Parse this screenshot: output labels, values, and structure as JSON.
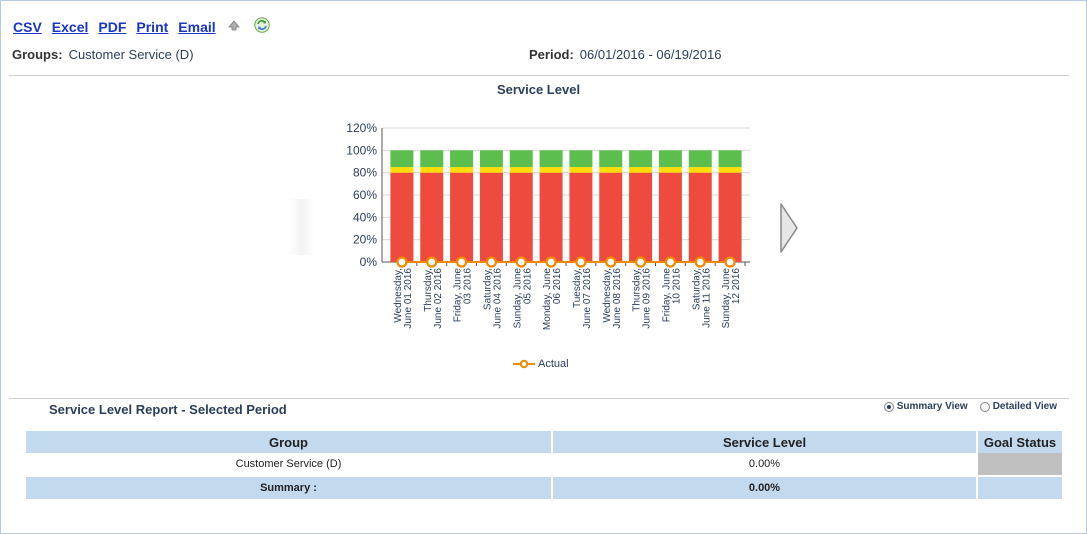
{
  "toolbar": {
    "csv": "CSV",
    "excel": "Excel",
    "pdf": "PDF",
    "print": "Print",
    "email": "Email"
  },
  "filters": {
    "groups_label": "Groups:",
    "groups_value": "Customer Service (D)",
    "period_label": "Period:",
    "period_value": "06/01/2016 - 06/19/2016"
  },
  "colors": {
    "red": "#ee4b3e",
    "yellow": "#ffdd00",
    "green": "#5cbf4d",
    "actual": "#f08a00"
  },
  "chart_data": {
    "type": "bar",
    "title": "Service Level",
    "stacked": true,
    "ylim": [
      0,
      120
    ],
    "yticks": [
      "0%",
      "20%",
      "40%",
      "60%",
      "80%",
      "100%",
      "120%"
    ],
    "categories": [
      [
        "Wednesday,",
        "June 01 2016"
      ],
      [
        "Thursday,",
        "June 02 2016"
      ],
      [
        "Friday, June",
        "03 2016"
      ],
      [
        "Saturday,",
        "June 04 2016"
      ],
      [
        "Sunday, June",
        "05 2016"
      ],
      [
        "Monday, June",
        "06 2016"
      ],
      [
        "Tuesday,",
        "June 07 2016"
      ],
      [
        "Wednesday,",
        "June 08 2016"
      ],
      [
        "Thursday,",
        "June 09 2016"
      ],
      [
        "Friday, June",
        "10 2016"
      ],
      [
        "Saturday,",
        "June 11 2016"
      ],
      [
        "Sunday, June",
        "12 2016"
      ]
    ],
    "series": [
      {
        "color": "#ee4b3e",
        "values": [
          80,
          80,
          80,
          80,
          80,
          80,
          80,
          80,
          80,
          80,
          80,
          80
        ]
      },
      {
        "color": "#ffdd00",
        "values": [
          5,
          5,
          5,
          5,
          5,
          5,
          5,
          5,
          5,
          5,
          5,
          5
        ]
      },
      {
        "color": "#5cbf4d",
        "values": [
          15,
          15,
          15,
          15,
          15,
          15,
          15,
          15,
          15,
          15,
          15,
          15
        ]
      },
      {
        "name": "Actual",
        "type": "line",
        "color": "#f08a00",
        "values": [
          0,
          0,
          0,
          0,
          0,
          0,
          0,
          0,
          0,
          0,
          0,
          0
        ]
      }
    ],
    "legend": [
      "Actual"
    ],
    "legend_position": "bottom",
    "grid": true
  },
  "report": {
    "title": "Service Level Report - Selected Period",
    "summary_view": "Summary View",
    "detailed_view": "Detailed View",
    "selected_view": "summary",
    "headers": [
      "Group",
      "Service Level",
      "Goal Status"
    ],
    "rows": [
      {
        "group": "Customer Service (D)",
        "service_level": "0.00%",
        "goal_status": ""
      }
    ],
    "summary": {
      "label": "Summary :",
      "service_level": "0.00%",
      "goal_status": ""
    }
  }
}
